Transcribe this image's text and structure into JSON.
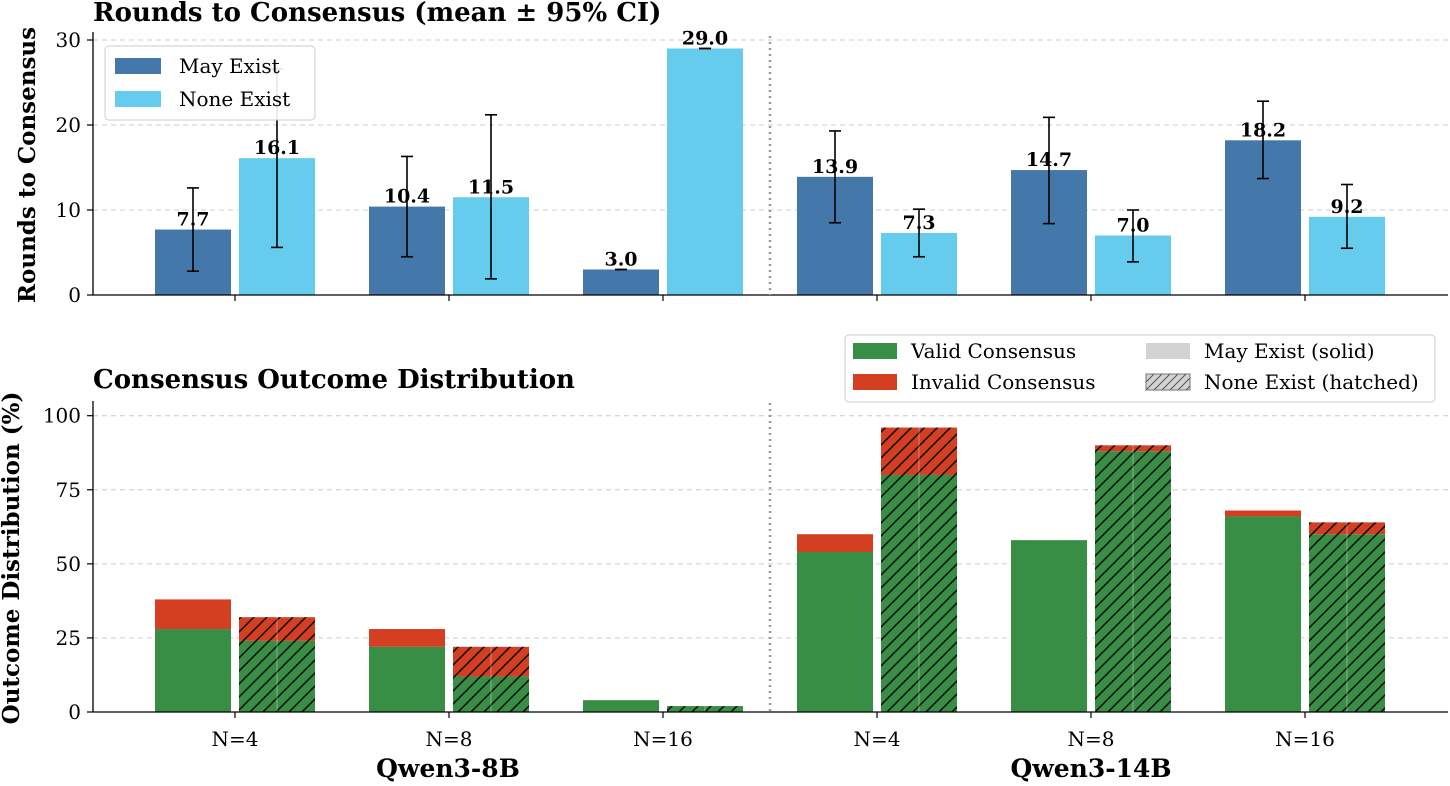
{
  "chart_data": [
    {
      "type": "bar",
      "title": "Rounds to Consensus (mean ± 95% CI)",
      "ylabel": "Rounds to Consensus",
      "xlabel": "",
      "ylim": [
        0,
        30
      ],
      "yticks": [
        0,
        10,
        20,
        30
      ],
      "groups": [
        "Qwen3-8B",
        "Qwen3-14B"
      ],
      "categories": [
        "N=4",
        "N=8",
        "N=16",
        "N=4",
        "N=8",
        "N=16"
      ],
      "series": [
        {
          "name": "May Exist",
          "color": "#4477aa",
          "values": [
            7.7,
            10.4,
            3.0,
            13.9,
            14.7,
            18.2
          ],
          "ci_low": [
            2.8,
            4.5,
            3.0,
            8.5,
            8.4,
            13.7
          ],
          "ci_high": [
            12.6,
            16.3,
            3.0,
            19.3,
            20.9,
            22.8
          ]
        },
        {
          "name": "None Exist",
          "color": "#66ccee",
          "values": [
            16.1,
            11.5,
            29.0,
            7.3,
            7.0,
            9.2
          ],
          "ci_low": [
            5.6,
            1.9,
            29.0,
            4.5,
            3.9,
            5.5
          ],
          "ci_high": [
            26.6,
            21.2,
            29.0,
            10.1,
            10.0,
            13.0
          ]
        }
      ],
      "data_labels": [
        "7.7",
        "16.1",
        "10.4",
        "11.5",
        "3.0",
        "29.0",
        "13.9",
        "7.3",
        "14.7",
        "7.0",
        "18.2",
        "9.2"
      ],
      "legend": {
        "position": "top-left",
        "entries": [
          "May Exist",
          "None Exist"
        ]
      }
    },
    {
      "type": "bar",
      "stacked": true,
      "title": "Consensus Outcome Distribution",
      "ylabel": "Outcome Distribution (%)",
      "xlabel": "",
      "ylim": [
        0,
        105
      ],
      "yticks": [
        0,
        25,
        50,
        75,
        100
      ],
      "groups": [
        "Qwen3-8B",
        "Qwen3-14B"
      ],
      "categories": [
        "N=4",
        "N=8",
        "N=16",
        "N=4",
        "N=8",
        "N=16"
      ],
      "series": [
        {
          "name": "May Exist",
          "style": "solid",
          "valid": [
            28,
            22,
            4,
            54,
            58,
            66
          ],
          "invalid": [
            10,
            6,
            0,
            6,
            0,
            2
          ]
        },
        {
          "name": "None Exist",
          "style": "hatched",
          "valid": [
            24,
            12,
            2,
            80,
            88,
            60
          ],
          "invalid": [
            8,
            10,
            0,
            16,
            2,
            4
          ]
        }
      ],
      "colors": {
        "valid": "#388e45",
        "invalid": "#d43f22"
      },
      "legend": {
        "position": "top-right",
        "entries": [
          "Valid Consensus",
          "Invalid Consensus",
          "May Exist (solid)",
          "None Exist (hatched)"
        ]
      }
    }
  ]
}
